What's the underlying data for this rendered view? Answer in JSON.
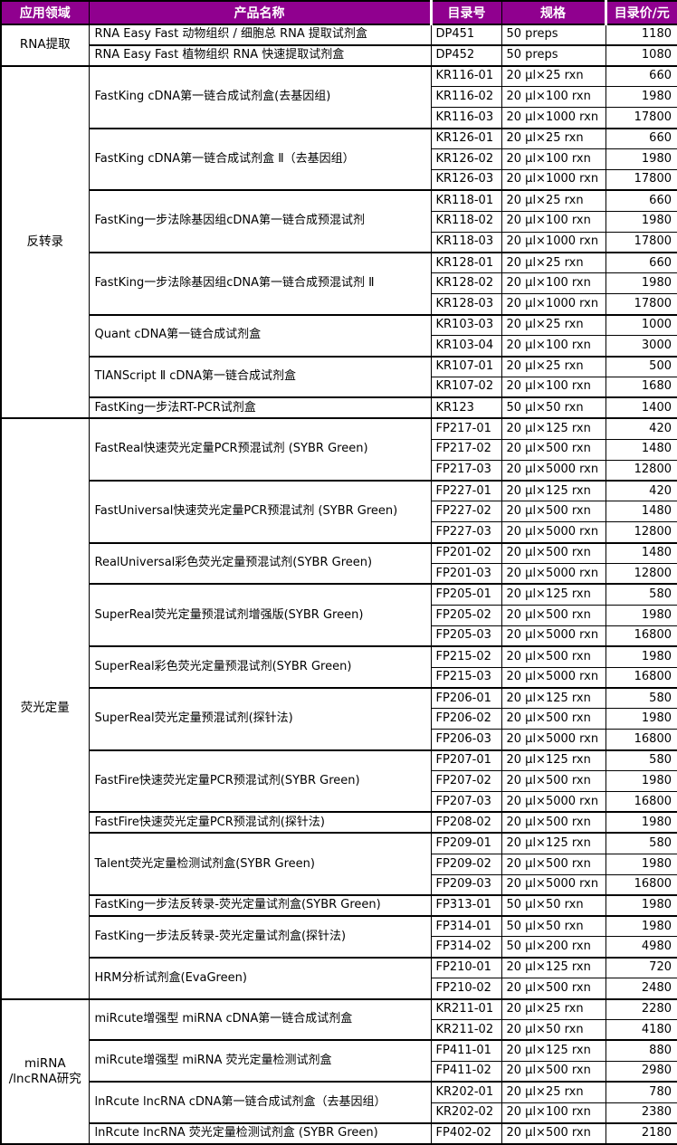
{
  "meta": {
    "accent_color": "#90008F",
    "grid_color": "#000000",
    "header_text_color": "#FFFFFF"
  },
  "table": {
    "columns": [
      {
        "id": "field",
        "label": "应用领域"
      },
      {
        "id": "product",
        "label": "产品名称"
      },
      {
        "id": "catalog",
        "label": "目录号"
      },
      {
        "id": "spec",
        "label": "规格"
      },
      {
        "id": "price",
        "label": "目录价/元"
      }
    ],
    "sections": [
      {
        "category": "RNA提取",
        "groups": [
          {
            "product": "RNA Easy Fast 动物组织 / 细胞总 RNA 提取试剂盒",
            "items": [
              {
                "catalog": "DP451",
                "spec": "50 preps",
                "price": "1180"
              }
            ]
          },
          {
            "product": "RNA Easy Fast 植物组织 RNA 快速提取试剂盒",
            "items": [
              {
                "catalog": "DP452",
                "spec": "50 preps",
                "price": "1080"
              }
            ]
          }
        ]
      },
      {
        "category": "反转录",
        "groups": [
          {
            "product": "FastKing cDNA第一链合成试剂盒(去基因组)",
            "items": [
              {
                "catalog": "KR116-01",
                "spec": "20 μl×25 rxn",
                "price": "660"
              },
              {
                "catalog": "KR116-02",
                "spec": "20 μl×100 rxn",
                "price": "1980"
              },
              {
                "catalog": "KR116-03",
                "spec": "20 μl×1000 rxn",
                "price": "17800"
              }
            ]
          },
          {
            "product": "FastKing cDNA第一链合成试剂盒 Ⅱ（去基因组）",
            "items": [
              {
                "catalog": "KR126-01",
                "spec": "20 μl×25 rxn",
                "price": "660"
              },
              {
                "catalog": "KR126-02",
                "spec": "20 μl×100 rxn",
                "price": "1980"
              },
              {
                "catalog": "KR126-03",
                "spec": "20 μl×1000 rxn",
                "price": "17800"
              }
            ]
          },
          {
            "product": "FastKing一步法除基因组cDNA第一链合成预混试剂",
            "items": [
              {
                "catalog": "KR118-01",
                "spec": "20 μl×25 rxn",
                "price": "660"
              },
              {
                "catalog": "KR118-02",
                "spec": "20 μl×100 rxn",
                "price": "1980"
              },
              {
                "catalog": "KR118-03",
                "spec": "20 μl×1000 rxn",
                "price": "17800"
              }
            ]
          },
          {
            "product": "FastKing一步法除基因组cDNA第一链合成预混试剂 Ⅱ",
            "items": [
              {
                "catalog": "KR128-01",
                "spec": "20 μl×25 rxn",
                "price": "660"
              },
              {
                "catalog": "KR128-02",
                "spec": "20 μl×100 rxn",
                "price": "1980"
              },
              {
                "catalog": "KR128-03",
                "spec": "20 μl×1000 rxn",
                "price": "17800"
              }
            ]
          },
          {
            "product": "Quant cDNA第一链合成试剂盒",
            "items": [
              {
                "catalog": "KR103-03",
                "spec": "20 μl×25 rxn",
                "price": "1000"
              },
              {
                "catalog": "KR103-04",
                "spec": "20 μl×100 rxn",
                "price": "3000"
              }
            ]
          },
          {
            "product": "TIANScript Ⅱ cDNA第一链合成试剂盒",
            "items": [
              {
                "catalog": "KR107-01",
                "spec": "20 μl×25 rxn",
                "price": "500"
              },
              {
                "catalog": "KR107-02",
                "spec": "20 μl×100 rxn",
                "price": "1680"
              }
            ]
          },
          {
            "product": "FastKing一步法RT-PCR试剂盒",
            "items": [
              {
                "catalog": "KR123",
                "spec": "50 μl×50 rxn",
                "price": "1400"
              }
            ]
          }
        ]
      },
      {
        "category": "荧光定量",
        "groups": [
          {
            "product": "FastReal快速荧光定量PCR预混试剂 (SYBR Green)",
            "items": [
              {
                "catalog": "FP217-01",
                "spec": "20 μl×125 rxn",
                "price": "420"
              },
              {
                "catalog": "FP217-02",
                "spec": "20 μl×500 rxn",
                "price": "1480"
              },
              {
                "catalog": "FP217-03",
                "spec": "20 μl×5000 rxn",
                "price": "12800"
              }
            ]
          },
          {
            "product": "FastUniversal快速荧光定量PCR预混试剂 (SYBR Green)",
            "items": [
              {
                "catalog": "FP227-01",
                "spec": "20 μl×125 rxn",
                "price": "420"
              },
              {
                "catalog": "FP227-02",
                "spec": "20 μl×500 rxn",
                "price": "1480"
              },
              {
                "catalog": "FP227-03",
                "spec": "20 μl×5000 rxn",
                "price": "12800"
              }
            ]
          },
          {
            "product": "RealUniversal彩色荧光定量预混试剂(SYBR Green)",
            "items": [
              {
                "catalog": "FP201-02",
                "spec": "20 μl×500 rxn",
                "price": "1480"
              },
              {
                "catalog": "FP201-03",
                "spec": "20 μl×5000 rxn",
                "price": "12800"
              }
            ]
          },
          {
            "product": "SuperReal荧光定量预混试剂增强版(SYBR Green)",
            "items": [
              {
                "catalog": "FP205-01",
                "spec": "20 μl×125 rxn",
                "price": "580"
              },
              {
                "catalog": "FP205-02",
                "spec": "20 μl×500 rxn",
                "price": "1980"
              },
              {
                "catalog": "FP205-03",
                "spec": "20 μl×5000 rxn",
                "price": "16800"
              }
            ]
          },
          {
            "product": "SuperReal彩色荧光定量预混试剂(SYBR Green)",
            "items": [
              {
                "catalog": "FP215-02",
                "spec": "20 μl×500 rxn",
                "price": "1980"
              },
              {
                "catalog": "FP215-03",
                "spec": "20 μl×5000 rxn",
                "price": "16800"
              }
            ]
          },
          {
            "product": "SuperReal荧光定量预混试剂(探针法)",
            "items": [
              {
                "catalog": "FP206-01",
                "spec": "20 μl×125 rxn",
                "price": "580"
              },
              {
                "catalog": "FP206-02",
                "spec": "20 μl×500 rxn",
                "price": "1980"
              },
              {
                "catalog": "FP206-03",
                "spec": "20 μl×5000 rxn",
                "price": "16800"
              }
            ]
          },
          {
            "product": "FastFire快速荧光定量PCR预混试剂(SYBR Green)",
            "items": [
              {
                "catalog": "FP207-01",
                "spec": "20 μl×125 rxn",
                "price": "580"
              },
              {
                "catalog": "FP207-02",
                "spec": "20 μl×500 rxn",
                "price": "1980"
              },
              {
                "catalog": "FP207-03",
                "spec": "20 μl×5000 rxn",
                "price": "16800"
              }
            ]
          },
          {
            "product": "FastFire快速荧光定量PCR预混试剂(探针法)",
            "items": [
              {
                "catalog": "FP208-02",
                "spec": "20 μl×500 rxn",
                "price": "1980"
              }
            ]
          },
          {
            "product": "Talent荧光定量检测试剂盒(SYBR Green)",
            "items": [
              {
                "catalog": "FP209-01",
                "spec": "20 μl×125 rxn",
                "price": "580"
              },
              {
                "catalog": "FP209-02",
                "spec": "20 μl×500 rxn",
                "price": "1980"
              },
              {
                "catalog": "FP209-03",
                "spec": "20 μl×5000 rxn",
                "price": "16800"
              }
            ]
          },
          {
            "product": "FastKing一步法反转录-荧光定量试剂盒(SYBR Green)",
            "items": [
              {
                "catalog": "FP313-01",
                "spec": "50 μl×50 rxn",
                "price": "1980"
              }
            ]
          },
          {
            "product": "FastKing一步法反转录-荧光定量试剂盒(探针法)",
            "items": [
              {
                "catalog": "FP314-01",
                "spec": "50 μl×50 rxn",
                "price": "1980"
              },
              {
                "catalog": "FP314-02",
                "spec": "50 μl×200 rxn",
                "price": "4980"
              }
            ]
          },
          {
            "product": "HRM分析试剂盒(EvaGreen)",
            "items": [
              {
                "catalog": "FP210-01",
                "spec": "20 μl×125 rxn",
                "price": "720"
              },
              {
                "catalog": "FP210-02",
                "spec": "20 μl×500 rxn",
                "price": "2480"
              }
            ]
          }
        ]
      },
      {
        "category": "miRNA\n/lncRNA研究",
        "groups": [
          {
            "product": "miRcute增强型 miRNA cDNA第一链合成试剂盒",
            "items": [
              {
                "catalog": "KR211-01",
                "spec": "20 μl×25 rxn",
                "price": "2280"
              },
              {
                "catalog": "KR211-02",
                "spec": "20 μl×50 rxn",
                "price": "4180"
              }
            ]
          },
          {
            "product": "miRcute增强型 miRNA 荧光定量检测试剂盒",
            "items": [
              {
                "catalog": "FP411-01",
                "spec": "20 μl×125 rxn",
                "price": "880"
              },
              {
                "catalog": "FP411-02",
                "spec": "20 μl×500 rxn",
                "price": "2980"
              }
            ]
          },
          {
            "product": "lnRcute lncRNA cDNA第一链合成试剂盒（去基因组）",
            "items": [
              {
                "catalog": "KR202-01",
                "spec": "20 μl×25 rxn",
                "price": "780"
              },
              {
                "catalog": "KR202-02",
                "spec": "20 μl×100 rxn",
                "price": "2380"
              }
            ]
          },
          {
            "product": "lnRcute lncRNA 荧光定量检测试剂盒 (SYBR Green)",
            "items": [
              {
                "catalog": "FP402-02",
                "spec": "20 μl×500 rxn",
                "price": "2180"
              }
            ]
          }
        ]
      }
    ]
  }
}
